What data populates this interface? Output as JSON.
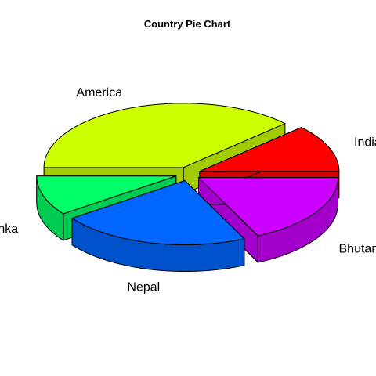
{
  "chart_data": {
    "type": "pie",
    "title": "Country Pie Chart",
    "categories": [
      "India",
      "America",
      "Shri Lanka",
      "Nepal",
      "Bhutan"
    ],
    "values": [
      12,
      38,
      10,
      22,
      18
    ],
    "colors": [
      "#ff0000",
      "#ccff00",
      "#00ff66",
      "#0066ff",
      "#cc00ff"
    ],
    "exploded": true,
    "three_d": true
  }
}
